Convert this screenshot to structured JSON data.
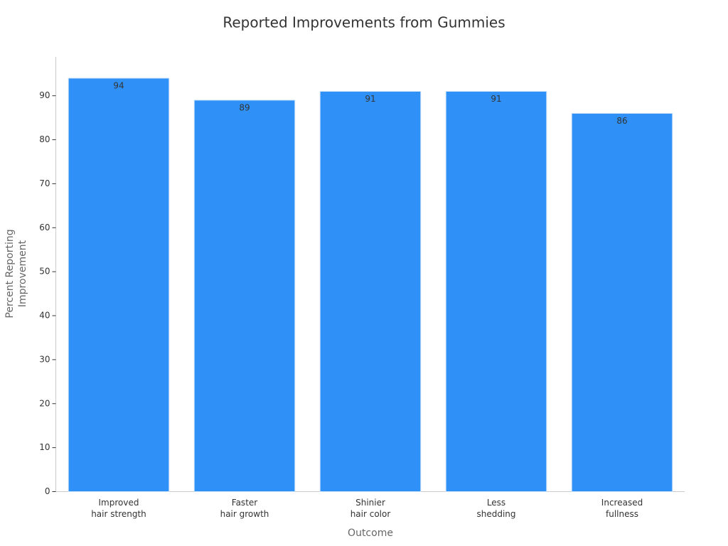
{
  "chart_data": {
    "type": "bar",
    "title": "Reported Improvements from Gummies",
    "x_label": "Outcome",
    "y_label": [
      "Percent Reporting",
      "Improvement"
    ],
    "categories": [
      [
        "Improved",
        "hair strength"
      ],
      [
        "Faster",
        "hair growth"
      ],
      [
        "Shinier",
        "hair color"
      ],
      [
        "Less",
        "shedding"
      ],
      [
        "Increased",
        "fullness"
      ]
    ],
    "values": [
      94,
      89,
      91,
      91,
      86
    ],
    "color": "#2f91f8",
    "ylim": [
      0,
      99
    ],
    "yticks": [
      0,
      10,
      20,
      30,
      40,
      50,
      60,
      70,
      80,
      90
    ],
    "grid": false
  }
}
